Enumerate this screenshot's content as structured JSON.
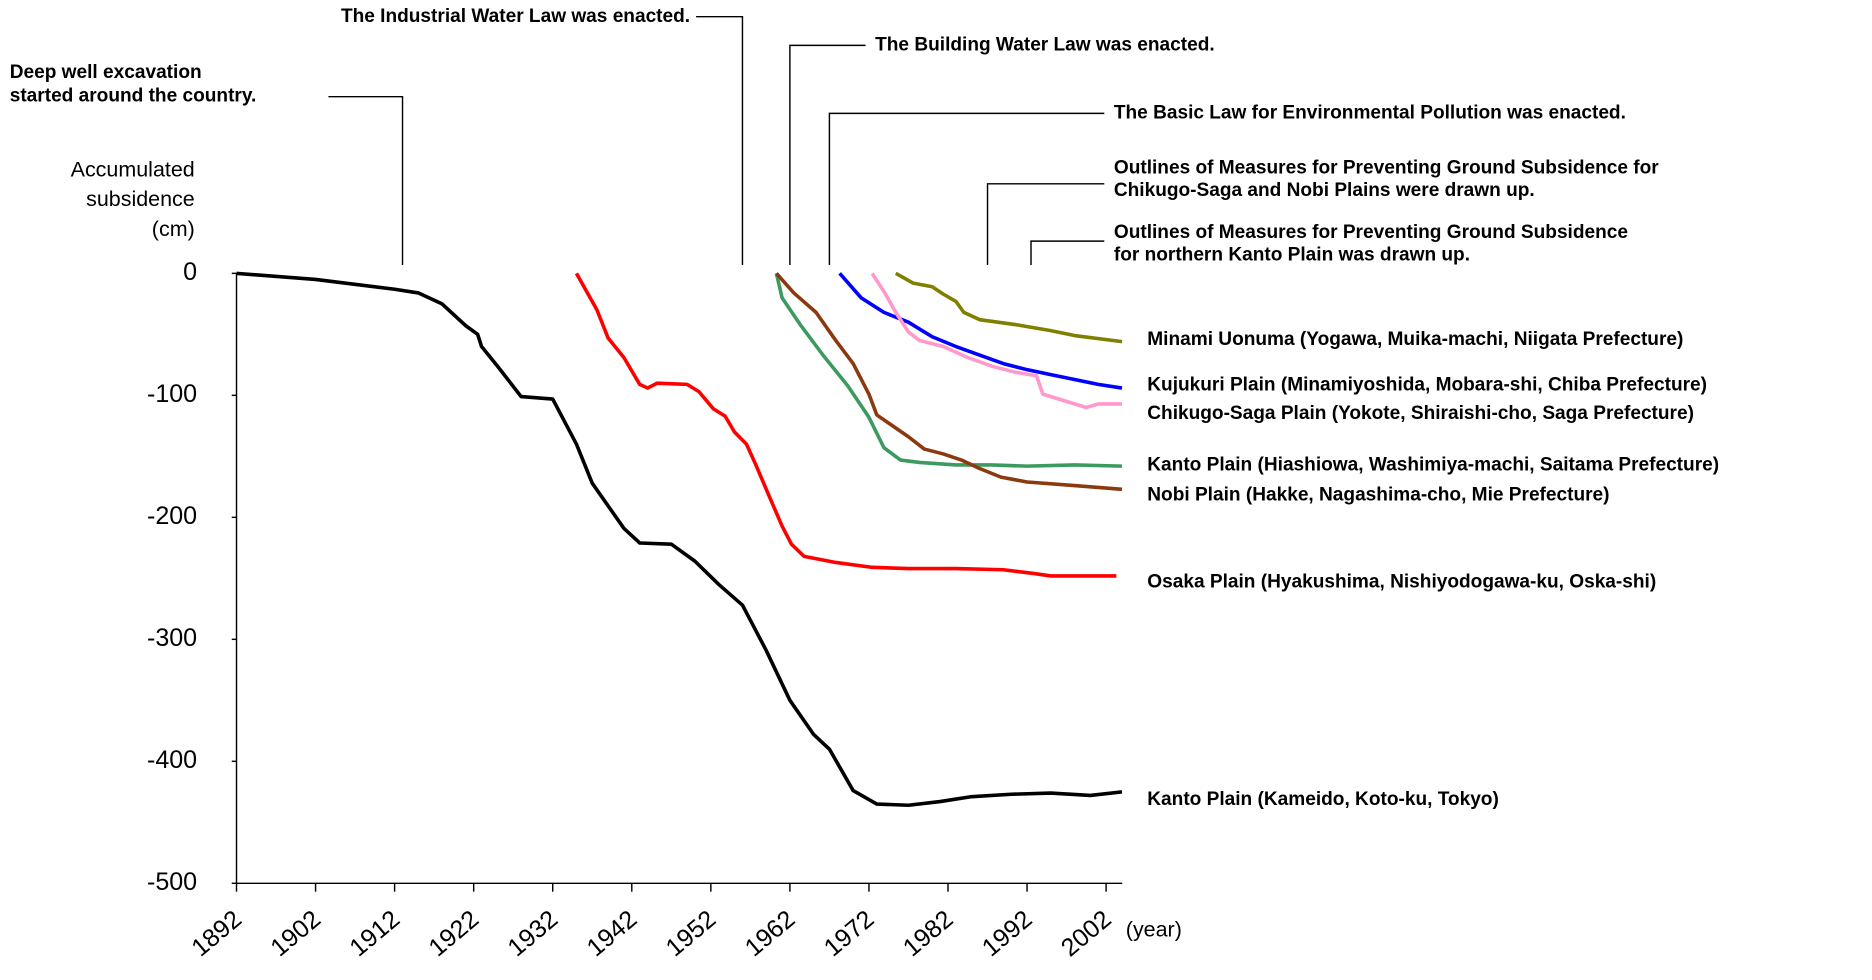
{
  "chart_data": {
    "type": "line",
    "ylabel": [
      "Accumulated",
      "subsidence",
      "(cm)"
    ],
    "xlabel": "(year)",
    "xlim": [
      1892,
      2006
    ],
    "ylim": [
      -500,
      0
    ],
    "xticks": [
      1892,
      1902,
      1912,
      1922,
      1932,
      1942,
      1952,
      1962,
      1972,
      1982,
      1992,
      2002
    ],
    "yticks": [
      0,
      -100,
      -200,
      -300,
      -400,
      -500
    ],
    "annotations": [
      {
        "text": [
          "Deep well excavation",
          "started around the country."
        ],
        "x": 1913
      },
      {
        "text": [
          "The Industrial Water Law  was enacted."
        ],
        "x": 1956
      },
      {
        "text": [
          "The Building Water Law was enacted."
        ],
        "x": 1962
      },
      {
        "text": [
          "The Basic Law for Environmental Pollution was enacted."
        ],
        "x": 1967
      },
      {
        "text": [
          "Outlines of Measures for Preventing Ground Subsidence for",
          "Chikugo-Saga and Nobi Plains were drawn up."
        ],
        "x": 1987
      },
      {
        "text": [
          "Outlines of Measures for Preventing Ground Subsidence",
          "for northern Kanto Plain was drawn up."
        ],
        "x": 1992.5
      }
    ],
    "series": [
      {
        "name": "Minami Uonuma (Yogawa, Muika-machi, Niigata Prefecture)",
        "color": "#808000",
        "x": [
          1975.4,
          1977.6,
          1980,
          1981.4,
          1983,
          1984,
          1986,
          1990.5,
          1995,
          1998,
          2004
        ],
        "values": [
          0,
          -8,
          -11,
          -17,
          -23,
          -32,
          -38,
          -42,
          -47,
          -51,
          -56
        ]
      },
      {
        "name": "Kujukuri Plain (Minamiyoshida, Mobara-shi, Chiba Prefecture)",
        "color": "#0000ff",
        "x": [
          1968.3,
          1971,
          1973.9,
          1977,
          1980,
          1983,
          1986,
          1989,
          1992,
          1995,
          1998,
          2001,
          2004
        ],
        "values": [
          0,
          -20,
          -32,
          -40,
          -52,
          -60,
          -67,
          -74,
          -79,
          -83,
          -87,
          -91,
          -94
        ]
      },
      {
        "name": "Chikugo-Saga Plain (Yokote, Shiraishi-cho, Saga Prefecture)",
        "color": "#ff99cc",
        "x": [
          1972.4,
          1974,
          1975.4,
          1977,
          1978.4,
          1981.4,
          1984.5,
          1987.5,
          1990.5,
          1993.2,
          1994,
          1996.5,
          1999.5,
          2001,
          2004
        ],
        "values": [
          0,
          -16,
          -32,
          -48,
          -55,
          -60,
          -69,
          -76,
          -81,
          -84,
          -99,
          -104,
          -110,
          -107,
          -107
        ]
      },
      {
        "name": "Kanto Plain (Hiashiowa, Washimiya-machi, Saitama Prefecture)",
        "color": "#3d9a5f",
        "x": [
          1960.3,
          1961,
          1963.3,
          1966.3,
          1969.3,
          1972,
          1973.9,
          1976,
          1978.4,
          1983,
          1987.5,
          1992,
          1998,
          2004
        ],
        "values": [
          0,
          -20,
          -42,
          -68,
          -92,
          -118,
          -143,
          -153,
          -155,
          -157,
          -157,
          -158,
          -157,
          -158
        ]
      },
      {
        "name": "Nobi Plain (Hakke, Nagashima-cho, Mie Prefecture)",
        "color": "#8b3a10",
        "x": [
          1960.3,
          1962.5,
          1965.3,
          1967.8,
          1970,
          1972,
          1973,
          1975,
          1977,
          1979,
          1981.4,
          1983.7,
          1986,
          1988.7,
          1992,
          1998,
          2004
        ],
        "values": [
          0,
          -16,
          -32,
          -55,
          -74,
          -99,
          -116,
          -125,
          -134,
          -144,
          -148,
          -153,
          -160,
          -167,
          -171,
          -174,
          -177
        ]
      },
      {
        "name": "Osaka Plain (Hyakushima, Nishiyodogawa-ku, Oska-shi)",
        "color": "#ff0000",
        "x": [
          1935,
          1937.6,
          1939,
          1941,
          1943,
          1944,
          1945.2,
          1949,
          1950.5,
          1952.3,
          1953.8,
          1955,
          1956.5,
          1957.7,
          1959.2,
          1961,
          1962.2,
          1963.8,
          1967.8,
          1972.4,
          1977,
          1983,
          1989,
          1992.8,
          1995,
          1998,
          2003.3
        ],
        "values": [
          0,
          -30,
          -53,
          -69,
          -91,
          -94,
          -90,
          -91,
          -97,
          -111,
          -117,
          -130,
          -140,
          -157,
          -180,
          -207,
          -222,
          -232,
          -237,
          -241,
          -242,
          -242,
          -243,
          -246,
          -248,
          -248,
          -248
        ]
      },
      {
        "name": "Kanto Plain (Kameido, Koto-ku, Tokyo)",
        "color": "#000000",
        "x": [
          1892,
          1902,
          1912,
          1915,
          1918,
          1921,
          1922.5,
          1923,
          1925,
          1928,
          1932,
          1935,
          1937,
          1941,
          1943,
          1947,
          1950,
          1953,
          1956,
          1959,
          1962,
          1965,
          1967,
          1970,
          1973,
          1977,
          1981,
          1985,
          1990,
          1995,
          2000,
          2004
        ],
        "values": [
          0,
          -5,
          -13,
          -16,
          -25,
          -43,
          -50,
          -60,
          -76,
          -101,
          -103,
          -140,
          -172,
          -209,
          -221,
          -222,
          -236,
          -255,
          -272,
          -309,
          -350,
          -378,
          -390,
          -424,
          -435,
          -436,
          -433,
          -429,
          -427,
          -426,
          -428,
          -425
        ]
      }
    ]
  }
}
